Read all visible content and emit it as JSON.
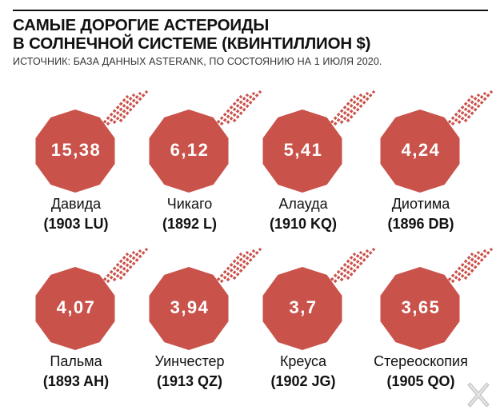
{
  "header": {
    "title_line1": "САМЫЕ ДОРОГИЕ АСТЕРОИДЫ",
    "title_line2": "В СОЛНЕЧНОЙ СИСТЕМЕ (КВИНТИЛЛИОН $)",
    "source": "ИСТОЧНИК: БАЗА ДАННЫХ ASTERANK, ПО СОСТОЯНИЮ НА 1 ИЮЛЯ 2020."
  },
  "colors": {
    "asteroid": "#c9524a",
    "trail": "#c9524a",
    "text": "#111111"
  },
  "chart_data": {
    "type": "table",
    "unit": "квинтиллион $",
    "items": [
      {
        "name": "Давида",
        "code": "(1903 LU)",
        "value": 15.38,
        "label": "15,38"
      },
      {
        "name": "Чикаго",
        "code": "(1892 L)",
        "value": 6.12,
        "label": "6,12"
      },
      {
        "name": "Алауда",
        "code": "(1910 KQ)",
        "value": 5.41,
        "label": "5,41"
      },
      {
        "name": "Диотима",
        "code": "(1896 DB)",
        "value": 4.24,
        "label": "4,24"
      },
      {
        "name": "Пальма",
        "code": "(1893 AH)",
        "value": 4.07,
        "label": "4,07"
      },
      {
        "name": "Уинчестер",
        "code": "(1913 QZ)",
        "value": 3.94,
        "label": "3,94"
      },
      {
        "name": "Креуса",
        "code": "(1902 JG)",
        "value": 3.7,
        "label": "3,7"
      },
      {
        "name": "Стереоскопия",
        "code": "(1905 QO)",
        "value": 3.65,
        "label": "3,65"
      }
    ]
  }
}
